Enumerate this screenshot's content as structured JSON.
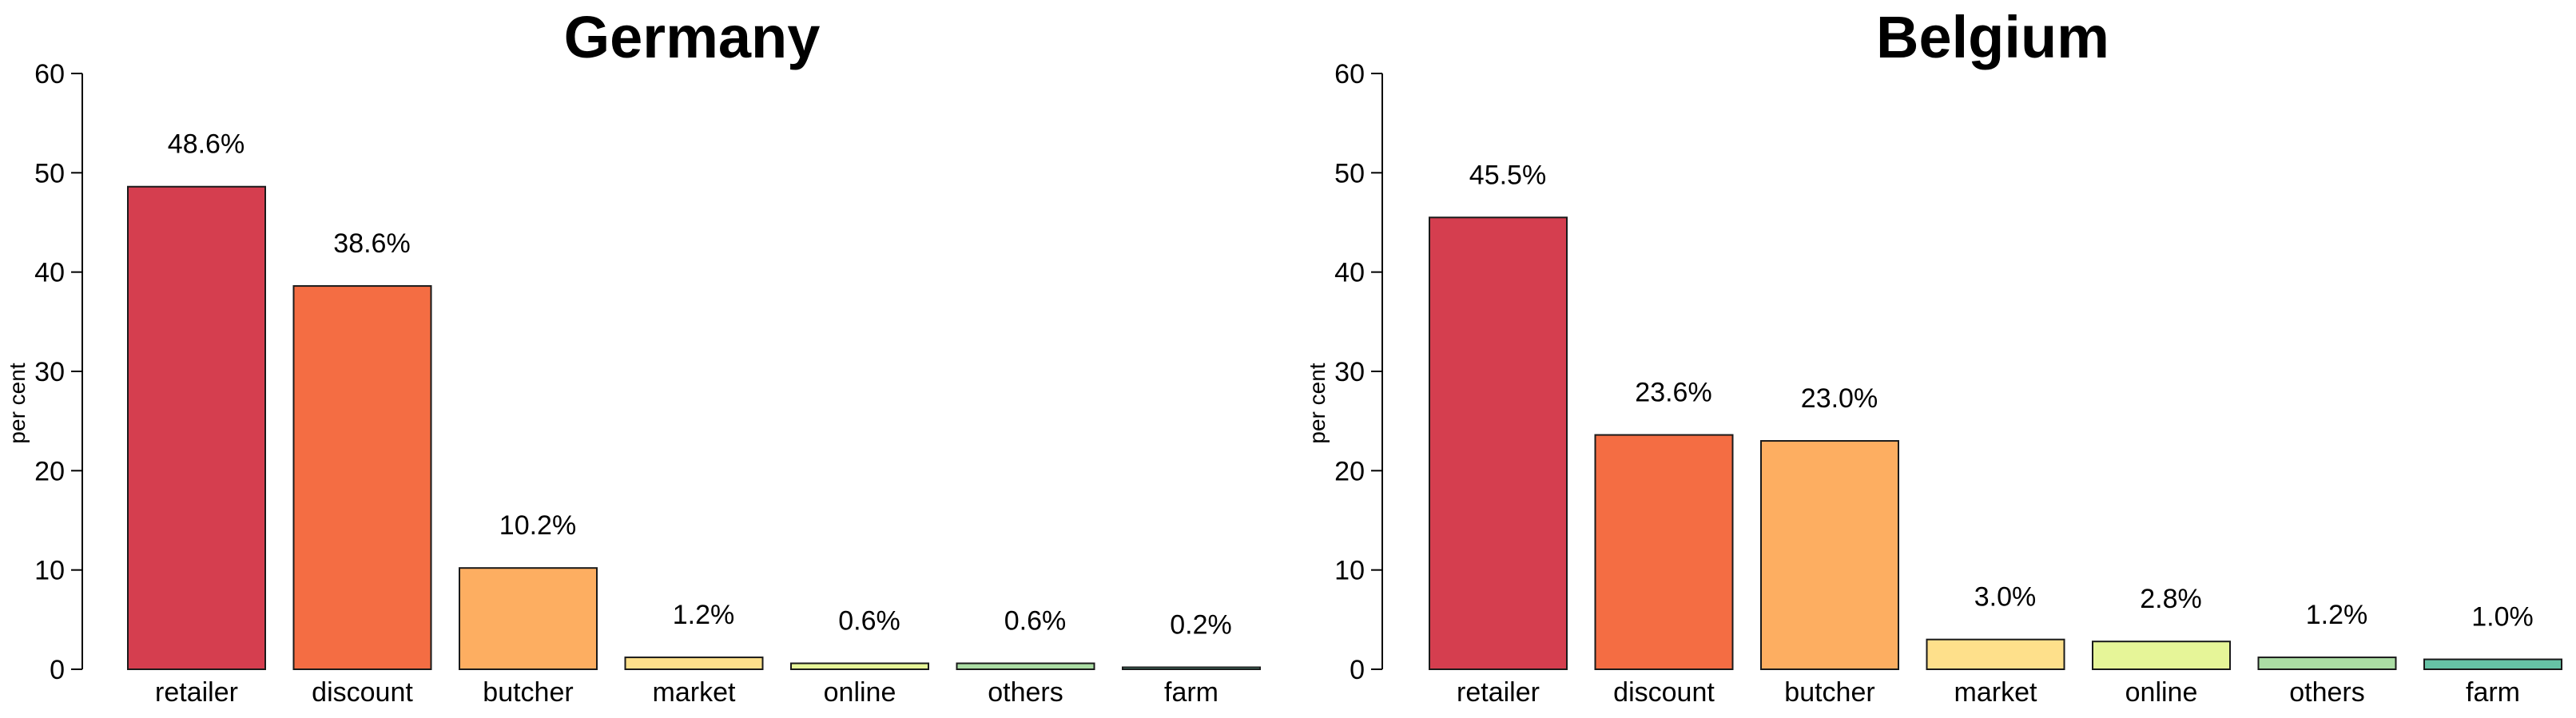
{
  "chart_data": [
    {
      "type": "bar",
      "title": "Germany",
      "ylabel": "per cent",
      "ylim": [
        0,
        60
      ],
      "yticks": [
        "0",
        "10",
        "20",
        "30",
        "40",
        "50",
        "60"
      ],
      "categories": [
        "retailer",
        "discount",
        "butcher",
        "market",
        "online",
        "others",
        "farm"
      ],
      "values": [
        48.6,
        38.6,
        10.2,
        1.2,
        0.6,
        0.6,
        0.2
      ],
      "labels": [
        "48.6%",
        "38.6%",
        "10.2%",
        "1.2%",
        "0.6%",
        "0.6%",
        "0.2%"
      ],
      "colors": [
        "#d53e4f",
        "#f46d43",
        "#fdae61",
        "#fee08b",
        "#e6f598",
        "#abdda4",
        "#66c2a5"
      ],
      "grid": false,
      "legend": "none"
    },
    {
      "type": "bar",
      "title": "Belgium",
      "ylabel": "per cent",
      "ylim": [
        0,
        60
      ],
      "yticks": [
        "0",
        "10",
        "20",
        "30",
        "40",
        "50",
        "60"
      ],
      "categories": [
        "retailer",
        "discount",
        "butcher",
        "market",
        "online",
        "others",
        "farm"
      ],
      "values": [
        45.5,
        23.6,
        23.0,
        3.0,
        2.8,
        1.2,
        1.0
      ],
      "labels": [
        "45.5%",
        "23.6%",
        "23.0%",
        "3.0%",
        "2.8%",
        "1.2%",
        "1.0%"
      ],
      "colors": [
        "#d53e4f",
        "#f46d43",
        "#fdae61",
        "#fee08b",
        "#e6f598",
        "#abdda4",
        "#66c2a5"
      ],
      "grid": false,
      "legend": "none"
    }
  ]
}
